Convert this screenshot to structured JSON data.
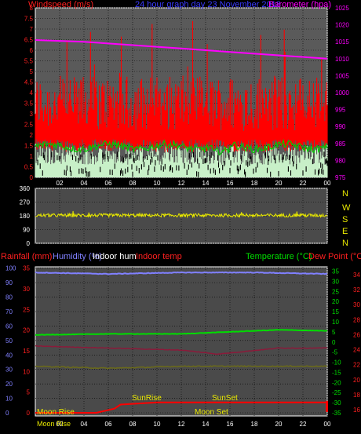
{
  "header": {
    "windspeed_label": "Windspeed (m/s)",
    "title": "24 hour graph day   23 November 2018",
    "barometer_label": "Barometer (hpa)"
  },
  "compass": [
    "N",
    "W",
    "S",
    "E",
    "N"
  ],
  "bottom_header": {
    "rainfall_label": "Rainfall (mm)",
    "humidity_label": "Humidity (%)",
    "indoor_hum_label": "Indoor hum",
    "indoor_temp_label": "Indoor temp",
    "temperature_label": "Temperature (°C)",
    "dewpoint_label": "Dew Point (°C)"
  },
  "events": {
    "sunrise": "SunRise",
    "sunset": "SunSet",
    "moonrise": "Moon Rise",
    "moonset": "Moon Set",
    "moonrise_bottom": "Moon Rise"
  },
  "colors": {
    "wind_gust": "#ff0000",
    "wind_avg": "#00cc00",
    "wind_low": "#c8f0c8",
    "barometer": "#ff00ff",
    "direction": "#e8e800",
    "humidity": "#8080ff",
    "temperature": "#00dd00",
    "dewpoint": "#8b1a3a",
    "indoor_temp": "#6b6b1a",
    "rainfall": "#ff0000",
    "axis_white": "#ffffff"
  },
  "chart_data": [
    {
      "type": "line",
      "name": "wind-and-pressure",
      "title": "24 hour graph day   23 November 2018",
      "x_ticks": [
        "02",
        "04",
        "06",
        "08",
        "10",
        "12",
        "14",
        "16",
        "18",
        "20",
        "22",
        "00"
      ],
      "y_left_ticks": [
        "0",
        "0.5",
        "1",
        "1.5",
        "2",
        "2.5",
        "3",
        "3.5",
        "4",
        "4.5",
        "5",
        "5.5",
        "6",
        "6.5",
        "7",
        "7.5",
        "8"
      ],
      "y_left_range": [
        0,
        8
      ],
      "y_right_ticks": [
        "975",
        "980",
        "985",
        "990",
        "995",
        "1000",
        "1005",
        "1010",
        "1015",
        "1020",
        "1025"
      ],
      "y_right_range": [
        975,
        1025
      ],
      "series": [
        {
          "name": "Barometer",
          "x": [
            0,
            4,
            8,
            12,
            16,
            20,
            24
          ],
          "values": [
            1015.5,
            1015,
            1014,
            1013,
            1012,
            1011,
            1010
          ]
        },
        {
          "name": "Windspeed",
          "x": [
            0,
            6,
            12,
            18,
            24
          ],
          "values": [
            1.5,
            1.5,
            1.4,
            1.5,
            1.4
          ]
        },
        {
          "name": "Gust",
          "x": [
            0,
            6,
            12,
            18,
            24
          ],
          "values": [
            3.5,
            4.0,
            4.0,
            3.5,
            4.0
          ]
        }
      ]
    },
    {
      "type": "scatter",
      "name": "wind-direction",
      "x_ticks": [
        "02",
        "04",
        "06",
        "08",
        "10",
        "12",
        "14",
        "16",
        "18",
        "20",
        "22",
        "00"
      ],
      "y_left_ticks": [
        "0",
        "90",
        "180",
        "270",
        "360"
      ],
      "y_left_range": [
        0,
        360
      ],
      "series": [
        {
          "name": "Direction",
          "x": [
            0,
            6,
            12,
            18,
            24
          ],
          "values": [
            180,
            185,
            180,
            185,
            180
          ]
        }
      ]
    },
    {
      "type": "line",
      "name": "temperature-humidity-rain",
      "x_ticks": [
        "02",
        "04",
        "06",
        "08",
        "10",
        "12",
        "14",
        "16",
        "18",
        "20",
        "22",
        "00"
      ],
      "y_left_ticks": [
        "0",
        "10",
        "20",
        "30",
        "40",
        "50",
        "60",
        "70",
        "80",
        "90",
        "100"
      ],
      "y_left_range": [
        0,
        100
      ],
      "y_rain_ticks": [
        "0",
        "5",
        "10",
        "15",
        "20",
        "25",
        "30",
        "35"
      ],
      "y_temp_ticks": [
        "-35",
        "-30",
        "-25",
        "-20",
        "-15",
        "-10",
        "-5",
        "0",
        "5",
        "10",
        "15",
        "20",
        "25",
        "30",
        "35"
      ],
      "y_temp_range": [
        -35,
        35
      ],
      "y_indoor_ticks": [
        "16",
        "18",
        "20",
        "22",
        "24",
        "26",
        "28",
        "30",
        "32",
        "34"
      ],
      "series": [
        {
          "name": "Humidity",
          "x": [
            0,
            6,
            12,
            18,
            24
          ],
          "values": [
            97,
            96,
            97,
            97,
            96
          ]
        },
        {
          "name": "Temperature",
          "x": [
            0,
            6,
            12,
            16,
            20,
            24
          ],
          "values": [
            3.5,
            4,
            4,
            5,
            6,
            5.5
          ]
        },
        {
          "name": "Dew Point",
          "x": [
            0,
            6,
            12,
            15,
            20,
            24
          ],
          "values": [
            -2,
            -3,
            -4,
            -6,
            -3,
            -3
          ]
        },
        {
          "name": "Indoor temp",
          "x": [
            0,
            6,
            12,
            18,
            24
          ],
          "values": [
            -12,
            -13,
            -12,
            -12,
            -12
          ]
        },
        {
          "name": "Rainfall",
          "x": [
            0,
            5,
            6.5,
            7,
            10,
            18,
            24
          ],
          "values": [
            0,
            0,
            1,
            2,
            2.5,
            2.5,
            2.5
          ]
        }
      ]
    }
  ]
}
